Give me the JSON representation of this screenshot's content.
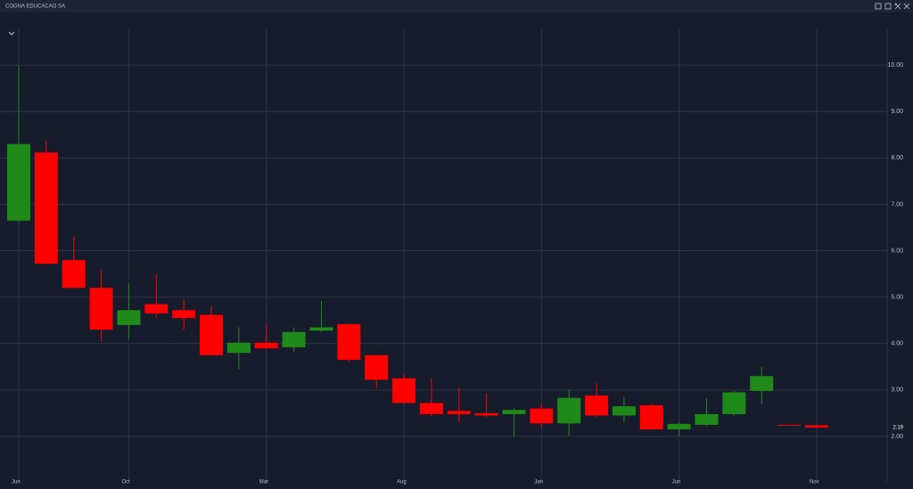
{
  "chart_data": {
    "type": "candlestick",
    "title": "COGNA EDUCACAO SA",
    "categories": [
      "Jun",
      null,
      null,
      null,
      "Oct",
      null,
      null,
      null,
      null,
      "Mar",
      null,
      null,
      null,
      null,
      "Aug",
      null,
      null,
      null,
      null,
      "Jan",
      null,
      null,
      null,
      null,
      "Jun",
      null,
      null,
      null,
      null,
      "Nov"
    ],
    "open": [
      6.65,
      8.12,
      5.8,
      5.2,
      4.4,
      4.85,
      4.72,
      4.62,
      3.8,
      4.02,
      3.92,
      4.28,
      4.42,
      3.75,
      3.25,
      2.72,
      2.55,
      2.5,
      2.48,
      2.6,
      2.28,
      2.88,
      2.45,
      2.67,
      2.15,
      2.25,
      2.48,
      2.98,
      2.25,
      2.24
    ],
    "high": [
      10.0,
      8.37,
      6.3,
      5.6,
      5.3,
      5.5,
      4.95,
      4.8,
      4.35,
      4.4,
      4.35,
      4.92,
      4.42,
      3.75,
      3.35,
      3.25,
      3.05,
      2.92,
      2.6,
      2.7,
      3.0,
      3.15,
      2.85,
      2.7,
      2.3,
      2.82,
      2.98,
      3.5,
      2.25,
      2.26
    ],
    "low": [
      6.6,
      5.7,
      5.2,
      4.05,
      4.1,
      4.55,
      4.3,
      3.75,
      3.45,
      3.88,
      3.82,
      4.25,
      3.6,
      3.05,
      2.7,
      2.42,
      2.3,
      2.4,
      2.0,
      2.2,
      2.02,
      2.4,
      2.3,
      2.15,
      2.0,
      2.22,
      2.45,
      2.7,
      2.24,
      2.18
    ],
    "close": [
      8.3,
      5.72,
      5.2,
      4.3,
      4.72,
      4.65,
      4.55,
      3.75,
      4.02,
      3.9,
      4.25,
      4.35,
      3.65,
      3.22,
      2.72,
      2.48,
      2.48,
      2.45,
      2.57,
      2.28,
      2.83,
      2.45,
      2.65,
      2.15,
      2.27,
      2.48,
      2.95,
      3.3,
      2.24,
      2.19
    ],
    "up_color": "#1f8a1a",
    "down_color": "#ff0000",
    "ylim": [
      1.02,
      10.79
    ],
    "yticks": [
      {
        "value": 2,
        "label": "2.00"
      },
      {
        "value": 3,
        "label": "3.00"
      },
      {
        "value": 4,
        "label": "4.00"
      },
      {
        "value": 5,
        "label": "5.00"
      },
      {
        "value": 6,
        "label": "6.00"
      },
      {
        "value": 7,
        "label": "7.00"
      },
      {
        "value": 8,
        "label": "8.00"
      },
      {
        "value": 9,
        "label": "9.00"
      },
      {
        "value": 10,
        "label": "10.00"
      }
    ],
    "last_value": 2.19,
    "grid": true
  }
}
